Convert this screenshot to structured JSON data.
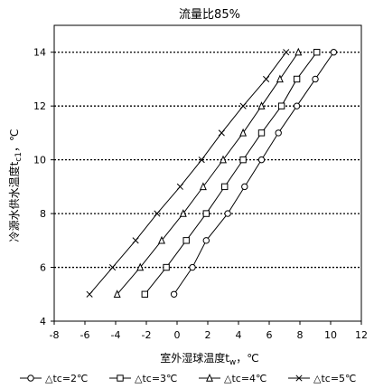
{
  "chart_data": {
    "type": "line",
    "title": "流量比85%",
    "xlabel_main": "室外湿球温度t",
    "xlabel_sub": "w",
    "xlabel_suffix": "，℃",
    "ylabel_main": "冷源水供水温度t",
    "ylabel_sub": "c1",
    "ylabel_suffix": "，℃",
    "xlim": [
      -8,
      12
    ],
    "ylim": [
      4,
      15
    ],
    "xticks": [
      -8,
      -6,
      -4,
      -2,
      0,
      2,
      4,
      6,
      8,
      10,
      12
    ],
    "yticks": [
      4,
      6,
      8,
      10,
      12,
      14
    ],
    "dotted_gridlines_y": [
      6,
      8,
      10,
      12,
      14
    ],
    "legend_position": "bottom",
    "series": [
      {
        "name": "△tc=2℃",
        "marker": "circle",
        "x": [
          -0.2,
          1.0,
          1.9,
          3.3,
          4.4,
          5.5,
          6.6,
          7.8,
          9.0,
          10.2
        ],
        "y": [
          5,
          6,
          7,
          8,
          9,
          10,
          11,
          12,
          13,
          14
        ]
      },
      {
        "name": "△tc=3℃",
        "marker": "square",
        "x": [
          -2.1,
          -0.7,
          0.6,
          1.9,
          3.1,
          4.3,
          5.5,
          6.8,
          7.8,
          9.1
        ],
        "y": [
          5,
          6,
          7,
          8,
          9,
          10,
          11,
          12,
          13,
          14
        ]
      },
      {
        "name": "△tc=4℃",
        "marker": "triangle",
        "x": [
          -3.9,
          -2.4,
          -1.0,
          0.4,
          1.7,
          3.0,
          4.3,
          5.5,
          6.7,
          7.9
        ],
        "y": [
          5,
          6,
          7,
          8,
          9,
          10,
          11,
          12,
          13,
          14
        ]
      },
      {
        "name": "△tc=5℃",
        "marker": "cross",
        "x": [
          -5.7,
          -4.2,
          -2.7,
          -1.3,
          0.2,
          1.6,
          2.9,
          4.3,
          5.8,
          7.1
        ],
        "y": [
          5,
          6,
          7,
          8,
          9,
          10,
          11,
          12,
          13,
          14
        ]
      }
    ]
  }
}
